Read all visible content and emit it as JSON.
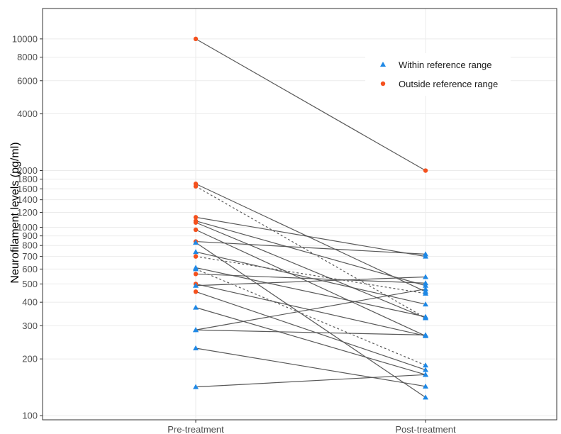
{
  "chart_data": {
    "type": "line",
    "title": "",
    "xlabel": "",
    "ylabel": "Neurofilament levels (pg/ml)",
    "y_scale": "log10",
    "ylim": [
      95,
      14500
    ],
    "categories": [
      "Pre-treatment",
      "Post-treatment"
    ],
    "y_ticks": [
      100,
      200,
      300,
      400,
      500,
      600,
      700,
      800,
      900,
      1000,
      1200,
      1400,
      1600,
      1800,
      2000,
      4000,
      6000,
      8000,
      10000
    ],
    "grid": true,
    "legend": {
      "position": "top-right",
      "entries": [
        {
          "name": "Within reference range",
          "marker": "triangle",
          "color": "#1E88E5"
        },
        {
          "name": "Outside reference range",
          "marker": "circle",
          "color": "#F4511E"
        }
      ]
    },
    "colors": {
      "within": "#1E88E5",
      "outside": "#F4511E",
      "line": "#595959"
    },
    "pairs": [
      {
        "pre": 10000,
        "post": 2000,
        "pre_group": "outside",
        "post_group": "outside",
        "line_style": "solid"
      },
      {
        "pre": 1700,
        "post": 455,
        "pre_group": "outside",
        "post_group": "within",
        "line_style": "solid"
      },
      {
        "pre": 1650,
        "post": 330,
        "pre_group": "outside",
        "post_group": "within",
        "line_style": "dashed"
      },
      {
        "pre": 1130,
        "post": 700,
        "pre_group": "outside",
        "post_group": "within",
        "line_style": "solid"
      },
      {
        "pre": 1080,
        "post": 490,
        "pre_group": "outside",
        "post_group": "within",
        "line_style": "solid"
      },
      {
        "pre": 1060,
        "post": 330,
        "pre_group": "outside",
        "post_group": "within",
        "line_style": "solid"
      },
      {
        "pre": 970,
        "post": 265,
        "pre_group": "outside",
        "post_group": "within",
        "line_style": "solid"
      },
      {
        "pre": 840,
        "post": 720,
        "pre_group": "outside",
        "post_group": "within",
        "line_style": "solid"
      },
      {
        "pre": 830,
        "post": 125,
        "pre_group": "within",
        "post_group": "within",
        "line_style": "solid"
      },
      {
        "pre": 740,
        "post": 390,
        "pre_group": "within",
        "post_group": "within",
        "line_style": "solid"
      },
      {
        "pre": 700,
        "post": 445,
        "pre_group": "outside",
        "post_group": "within",
        "line_style": "dashed"
      },
      {
        "pre": 610,
        "post": 335,
        "pre_group": "within",
        "post_group": "within",
        "line_style": "solid"
      },
      {
        "pre": 600,
        "post": 185,
        "pre_group": "within",
        "post_group": "within",
        "line_style": "dashed"
      },
      {
        "pre": 565,
        "post": 505,
        "pre_group": "outside",
        "post_group": "within",
        "line_style": "solid"
      },
      {
        "pre": 500,
        "post": 265,
        "pre_group": "outside",
        "post_group": "within",
        "line_style": "solid"
      },
      {
        "pre": 490,
        "post": 545,
        "pre_group": "within",
        "post_group": "within",
        "line_style": "solid"
      },
      {
        "pre": 455,
        "post": 175,
        "pre_group": "outside",
        "post_group": "within",
        "line_style": "solid"
      },
      {
        "pre": 375,
        "post": 165,
        "pre_group": "within",
        "post_group": "within",
        "line_style": "solid"
      },
      {
        "pre": 285,
        "post": 470,
        "pre_group": "within",
        "post_group": "within",
        "line_style": "solid"
      },
      {
        "pre": 285,
        "post": 268,
        "pre_group": "within",
        "post_group": "within",
        "line_style": "solid"
      },
      {
        "pre": 228,
        "post": 143,
        "pre_group": "within",
        "post_group": "within",
        "line_style": "solid"
      },
      {
        "pre": 142,
        "post": 165,
        "pre_group": "within",
        "post_group": "within",
        "line_style": "solid"
      }
    ]
  }
}
